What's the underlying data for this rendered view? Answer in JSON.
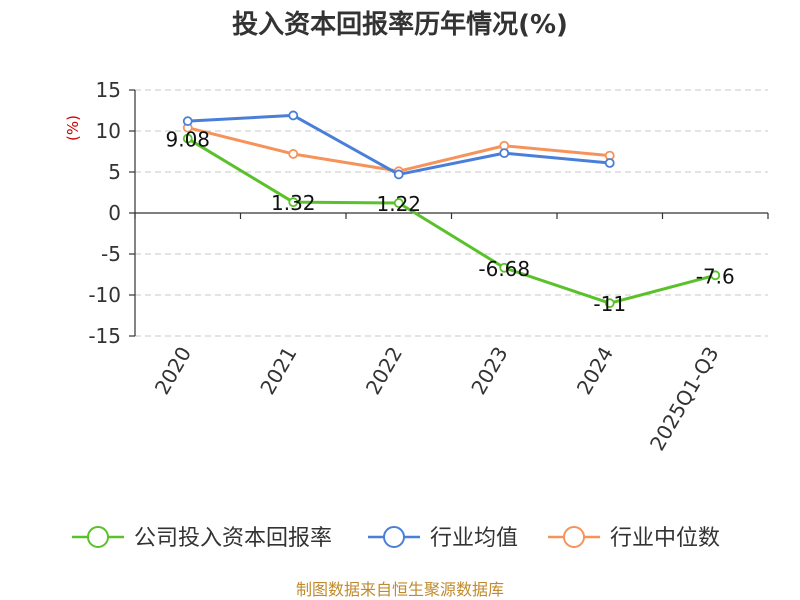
{
  "chart_data": {
    "type": "line",
    "title": "投入资本回报率历年情况(%)",
    "ylabel": "(%)",
    "xlabel": "",
    "categories": [
      "2020",
      "2021",
      "2022",
      "2023",
      "2024",
      "2025Q1-Q3"
    ],
    "ylim": [
      -15,
      15
    ],
    "yticks": [
      15,
      10,
      5,
      0,
      -5,
      -10,
      -15
    ],
    "grid": true,
    "series": [
      {
        "name": "公司投入资本回报率",
        "color": "#5ac129",
        "values": [
          9.08,
          1.32,
          1.22,
          -6.68,
          -11,
          -7.6
        ],
        "labels": [
          "9.08",
          "1.32",
          "1.22",
          "-6.68",
          "-11",
          "-7.6"
        ]
      },
      {
        "name": "行业均值",
        "color": "#4a7fd9",
        "values": [
          11.2,
          11.9,
          4.7,
          7.3,
          6.1,
          null
        ]
      },
      {
        "name": "行业中位数",
        "color": "#f5935b",
        "values": [
          10.4,
          7.2,
          5.1,
          8.2,
          7.0,
          null
        ]
      }
    ],
    "legend_position": "bottom"
  },
  "footer": {
    "source": "制图数据来自恒生聚源数据库"
  }
}
